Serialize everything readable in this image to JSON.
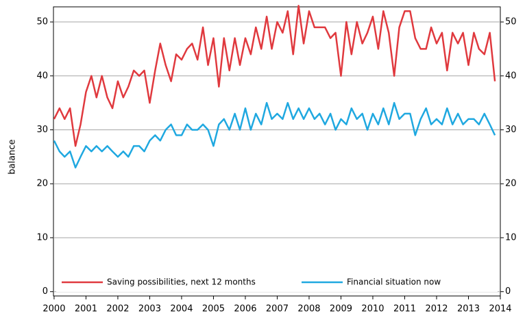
{
  "chart_data": {
    "type": "line",
    "ylabel": "balance",
    "x": [
      2000,
      2000.17,
      2000.33,
      2000.5,
      2000.67,
      2000.83,
      2001,
      2001.17,
      2001.33,
      2001.5,
      2001.67,
      2001.83,
      2002,
      2002.17,
      2002.33,
      2002.5,
      2002.67,
      2002.83,
      2003,
      2003.17,
      2003.33,
      2003.5,
      2003.67,
      2003.83,
      2004,
      2004.17,
      2004.33,
      2004.5,
      2004.67,
      2004.83,
      2005,
      2005.17,
      2005.33,
      2005.5,
      2005.67,
      2005.83,
      2006,
      2006.17,
      2006.33,
      2006.5,
      2006.67,
      2006.83,
      2007,
      2007.17,
      2007.33,
      2007.5,
      2007.67,
      2007.83,
      2008,
      2008.17,
      2008.33,
      2008.5,
      2008.67,
      2008.83,
      2009,
      2009.17,
      2009.33,
      2009.5,
      2009.67,
      2009.83,
      2010,
      2010.17,
      2010.33,
      2010.5,
      2010.67,
      2010.83,
      2011,
      2011.17,
      2011.33,
      2011.5,
      2011.67,
      2011.83,
      2012,
      2012.17,
      2012.33,
      2012.5,
      2012.67,
      2012.83,
      2013,
      2013.17,
      2013.33,
      2013.5,
      2013.67,
      2013.83
    ],
    "series": [
      {
        "name": "Saving possibilities, next 12 months",
        "color": "#e0393e",
        "values": [
          32,
          34,
          32,
          34,
          27,
          31,
          37,
          40,
          36,
          40,
          36,
          34,
          39,
          36,
          38,
          41,
          40,
          41,
          35,
          41,
          46,
          42,
          39,
          44,
          43,
          45,
          46,
          43,
          49,
          42,
          47,
          38,
          47,
          41,
          47,
          42,
          47,
          44,
          49,
          45,
          51,
          45,
          50,
          48,
          52,
          44,
          53,
          46,
          52,
          49,
          49,
          49,
          47,
          48,
          40,
          50,
          44,
          50,
          46,
          48,
          51,
          45,
          52,
          48,
          40,
          49,
          52,
          52,
          47,
          45,
          45,
          49,
          46,
          48,
          41,
          48,
          46,
          48,
          42,
          48,
          45,
          44,
          48,
          39
        ]
      },
      {
        "name": "Financial situation now",
        "color": "#1fa8e0",
        "values": [
          28,
          26,
          25,
          26,
          23,
          25,
          27,
          26,
          27,
          26,
          27,
          26,
          25,
          26,
          25,
          27,
          27,
          26,
          28,
          29,
          28,
          30,
          31,
          29,
          29,
          31,
          30,
          30,
          31,
          30,
          27,
          31,
          32,
          30,
          33,
          30,
          34,
          30,
          33,
          31,
          35,
          32,
          33,
          32,
          35,
          32,
          34,
          32,
          34,
          32,
          33,
          31,
          33,
          30,
          32,
          31,
          34,
          32,
          33,
          30,
          33,
          31,
          34,
          31,
          35,
          32,
          33,
          33,
          29,
          32,
          34,
          31,
          32,
          31,
          34,
          31,
          33,
          31,
          32,
          32,
          31,
          33,
          31,
          29
        ]
      }
    ],
    "xlim": [
      1999.98,
      2014
    ],
    "xticks": [
      2000,
      2001,
      2002,
      2003,
      2004,
      2005,
      2006,
      2007,
      2008,
      2009,
      2010,
      2011,
      2012,
      2013,
      2014
    ],
    "ylim": [
      -0.8,
      52.8
    ],
    "yticks": [
      0,
      10,
      20,
      30,
      40,
      50
    ],
    "y2lim": [
      -0.8,
      52.8
    ],
    "y2ticks": [
      0,
      10,
      20,
      30,
      40,
      50
    ],
    "grid": true,
    "legend": "bottom"
  }
}
